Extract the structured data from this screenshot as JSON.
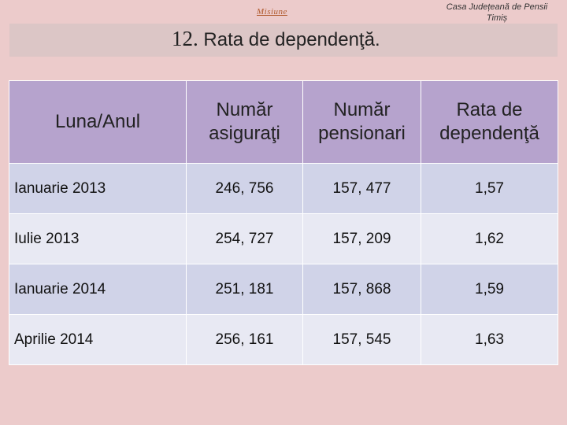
{
  "header": {
    "link": "Misiune",
    "org_line1": "Casa Județeană de Pensii",
    "org_line2": "Timiș"
  },
  "title": {
    "number": "12.",
    "text": "Rata de dependenţă."
  },
  "table": {
    "columns": [
      [
        "Luna/Anul"
      ],
      [
        "Număr",
        "asiguraţi"
      ],
      [
        "Număr",
        "pensionari"
      ],
      [
        "Rata de",
        "dependenţă"
      ]
    ],
    "rows": [
      [
        "Ianuarie 2013",
        "246, 756",
        "157, 477",
        "1,57"
      ],
      [
        "Iulie 2013",
        "254, 727",
        "157, 209",
        "1,62"
      ],
      [
        "Ianuarie 2014",
        "251, 181",
        "157, 868",
        "1,59"
      ],
      [
        "Aprilie 2014",
        "256, 161",
        "157, 545",
        "1,63"
      ]
    ]
  }
}
